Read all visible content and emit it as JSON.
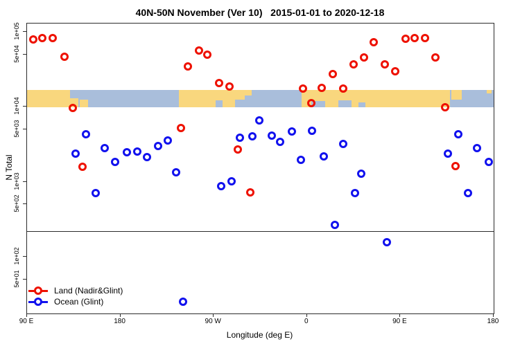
{
  "title": "40N-50N November (Ver 10)   2015-01-01 to 2020-12-18",
  "colors": {
    "land_series": "#ee1100",
    "ocean_series": "#1111ee",
    "map_land": "#f9d77e",
    "map_ocean": "#a9bedb",
    "axis": "#2b2b2b"
  },
  "legend": {
    "items": [
      {
        "label": "Land (Nadir&Glint)",
        "color": "#ee1100"
      },
      {
        "label": "Ocean (Glint)",
        "color": "#1111ee"
      }
    ]
  },
  "chart_data": {
    "type": "scatter",
    "title": "40N-50N November (Ver 10)   2015-01-01 to 2020-12-18",
    "xlabel": "Longitude (deg E)",
    "ylabel": "N Total",
    "x_axis": {
      "note": "axis runs 90E eastward around the globe past 180, 90W, 0, 90E to 180 again (t = deg east of Greenwich, 90..540)",
      "range": [
        90,
        540
      ],
      "ticks": [
        {
          "t": 90,
          "label": "90 E"
        },
        {
          "t": 180,
          "label": "180"
        },
        {
          "t": 270,
          "label": "90 W"
        },
        {
          "t": 360,
          "label": "0"
        },
        {
          "t": 450,
          "label": "90 E"
        },
        {
          "t": 540,
          "label": "180"
        }
      ]
    },
    "y_axis": {
      "log": true,
      "range": [
        17,
        130000
      ],
      "ticks": [
        {
          "v": 100000,
          "label": "1e+05"
        },
        {
          "v": 50000,
          "label": "5e+04"
        },
        {
          "v": 10000,
          "label": "1e+04"
        },
        {
          "v": 5000,
          "label": "5e+03"
        },
        {
          "v": 1000,
          "label": "1e+03"
        },
        {
          "v": 500,
          "label": "5e+02"
        },
        {
          "v": 100,
          "label": "1e+02"
        },
        {
          "v": 50,
          "label": "5e+01"
        }
      ]
    },
    "reference_line_n": 220,
    "map_band": {
      "n_range": [
        9870,
        16750
      ],
      "land_patches": [
        {
          "t0": 90,
          "t1": 131.5,
          "pos": "full",
          "frac": 1
        },
        {
          "t0": 131.5,
          "t1": 139.5,
          "pos": "bottom",
          "frac": 0.5
        },
        {
          "t0": 140.8,
          "t1": 148.9,
          "pos": "bottom",
          "frac": 0.45
        },
        {
          "t0": 236.5,
          "t1": 290.7,
          "pos": "full",
          "frac": 1
        },
        {
          "t0": 290.7,
          "t1": 300.1,
          "pos": "top",
          "frac": 0.55
        },
        {
          "t0": 300.1,
          "t1": 306.8,
          "pos": "top",
          "frac": 0.3
        },
        {
          "t0": 355.0,
          "t1": 498.2,
          "pos": "full",
          "frac": 1
        },
        {
          "t0": 499.5,
          "t1": 509.5,
          "pos": "top",
          "frac": 0.55
        },
        {
          "t0": 533.0,
          "t1": 537.7,
          "pos": "top",
          "frac": 0.2
        }
      ],
      "ocean_patches": [
        {
          "t0": 272.0,
          "t1": 278.7,
          "pos": "bottom",
          "frac": 0.4
        },
        {
          "t0": 364.3,
          "t1": 377.7,
          "pos": "bottom",
          "frac": 0.35
        },
        {
          "t0": 390.4,
          "t1": 403.1,
          "pos": "bottom",
          "frac": 0.4
        },
        {
          "t0": 409.8,
          "t1": 416.5,
          "pos": "bottom",
          "frac": 0.28
        }
      ]
    },
    "series": [
      {
        "name": "Land (Nadir&Glint)",
        "color": "#ee1100",
        "points": [
          [
            96,
            79000
          ],
          [
            105,
            82600
          ],
          [
            115,
            82600
          ],
          [
            126,
            46500
          ],
          [
            134,
            9640
          ],
          [
            143.5,
            1580
          ],
          [
            238.5,
            5200
          ],
          [
            245,
            34500
          ],
          [
            256,
            56300
          ],
          [
            264,
            49600
          ],
          [
            275,
            20700
          ],
          [
            285,
            18600
          ],
          [
            293,
            2690
          ],
          [
            305.5,
            720
          ],
          [
            356,
            17500
          ],
          [
            364,
            11200
          ],
          [
            374,
            17900
          ],
          [
            385,
            27300
          ],
          [
            395,
            17500
          ],
          [
            405,
            36800
          ],
          [
            415,
            45500
          ],
          [
            424.5,
            72700
          ],
          [
            435,
            36800
          ],
          [
            445,
            29700
          ],
          [
            455,
            80900
          ],
          [
            464,
            82600
          ],
          [
            473.5,
            82600
          ],
          [
            484,
            45500
          ],
          [
            493.5,
            9860
          ],
          [
            503,
            1620
          ]
        ]
      },
      {
        "name": "Ocean (Glint)",
        "color": "#1111ee",
        "points": [
          [
            137,
            2370
          ],
          [
            147,
            4300
          ],
          [
            156,
            706
          ],
          [
            165,
            2810
          ],
          [
            175,
            1840
          ],
          [
            186,
            2470
          ],
          [
            196,
            2530
          ],
          [
            206,
            2130
          ],
          [
            216.5,
            3000
          ],
          [
            226,
            3550
          ],
          [
            234,
            1340
          ],
          [
            240.5,
            25
          ],
          [
            277,
            873
          ],
          [
            287,
            1010
          ],
          [
            295,
            3860
          ],
          [
            307,
            4030
          ],
          [
            314,
            6570
          ],
          [
            326,
            4120
          ],
          [
            334,
            3400
          ],
          [
            345.5,
            4680
          ],
          [
            354,
            1960
          ],
          [
            365,
            4790
          ],
          [
            376,
            2180
          ],
          [
            387,
            265
          ],
          [
            395,
            3190
          ],
          [
            406,
            706
          ],
          [
            412,
            1280
          ],
          [
            437,
            156
          ],
          [
            496,
            2370
          ],
          [
            506,
            4300
          ],
          [
            515,
            706
          ],
          [
            524,
            2810
          ],
          [
            535,
            1840
          ]
        ]
      }
    ]
  }
}
